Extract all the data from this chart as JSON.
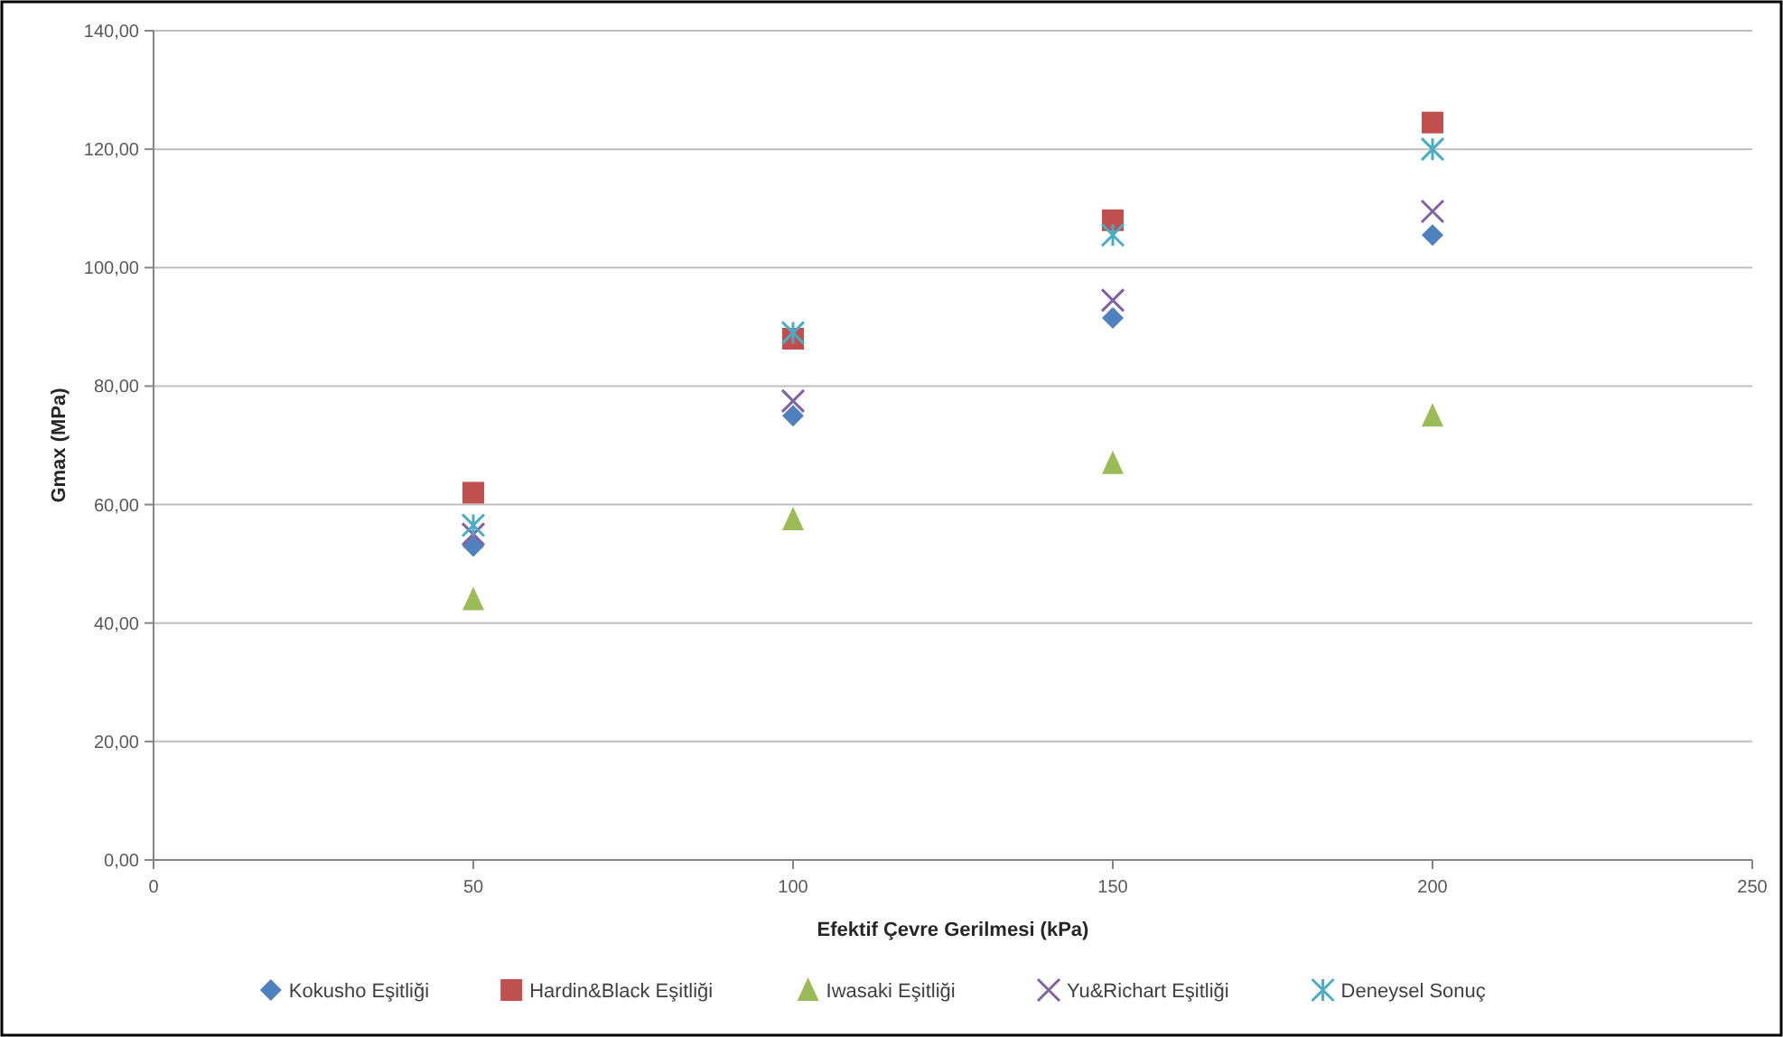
{
  "chart_data": {
    "type": "scatter",
    "xlabel": "Efektif Çevre Gerilmesi (kPa)",
    "ylabel": "Gmax (MPa)",
    "x": [
      50,
      100,
      150,
      200
    ],
    "series": [
      {
        "name": "Kokusho Eşitliği",
        "color": "#4f81bd",
        "marker": "diamond",
        "values": [
          53,
          75,
          91.5,
          105.5
        ]
      },
      {
        "name": "Hardin&Black Eşitliği",
        "color": "#c0504d",
        "marker": "square",
        "values": [
          62,
          88,
          108,
          124.5
        ]
      },
      {
        "name": "Iwasaki Eşitliği",
        "color": "#9bbb59",
        "marker": "triangle",
        "values": [
          44,
          57.5,
          67,
          75
        ]
      },
      {
        "name": "Yu&Richart Eşitliği",
        "color": "#8064a2",
        "marker": "cross",
        "values": [
          55,
          77.5,
          94.5,
          109.5
        ]
      },
      {
        "name": "Deneysel Sonuç",
        "color": "#4bacc6",
        "marker": "cross",
        "values": [
          56.5,
          89,
          105.5,
          120
        ]
      }
    ],
    "xlim": [
      0,
      250
    ],
    "xticks": [
      0,
      50,
      100,
      150,
      200,
      250
    ],
    "ylim": [
      0,
      140
    ],
    "yticks": [
      {
        "value": 0,
        "label": "0,00"
      },
      {
        "value": 20,
        "label": "20,00"
      },
      {
        "value": 40,
        "label": "40,00"
      },
      {
        "value": 60,
        "label": "60,00"
      },
      {
        "value": 80,
        "label": "80,00"
      },
      {
        "value": 100,
        "label": "100,00"
      },
      {
        "value": 120,
        "label": "120,00"
      },
      {
        "value": 140,
        "label": "140,00"
      }
    ],
    "grid": "y",
    "legend": "bottom"
  }
}
